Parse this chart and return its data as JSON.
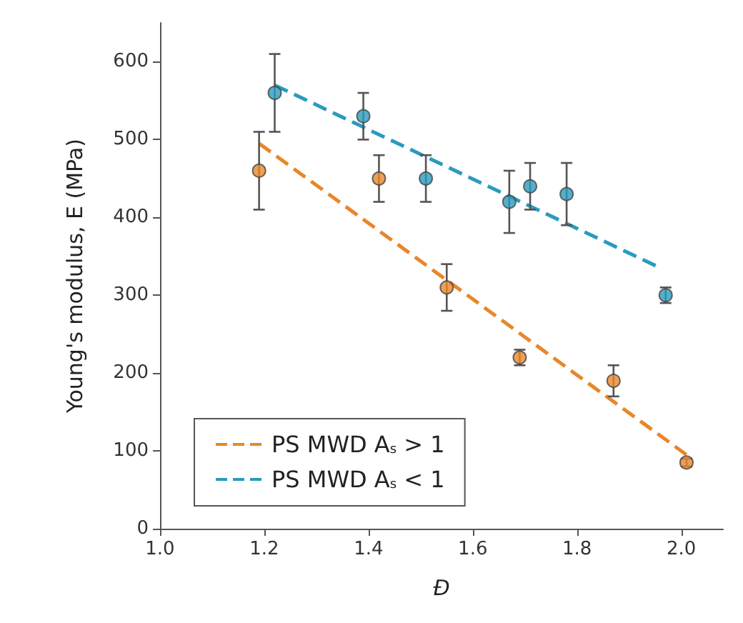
{
  "chart_data": {
    "type": "scatter",
    "xlabel": "Đ",
    "ylabel": "Young's modulus, E (MPa)",
    "xlim": [
      1.0,
      2.08
    ],
    "xticks": [
      {
        "value": 1.0,
        "label": "1.0"
      },
      1.2,
      1.4,
      1.6,
      1.8,
      {
        "value": 2.0,
        "label": "2.0"
      }
    ],
    "ylim": [
      0,
      650
    ],
    "yticks": [
      0,
      100,
      200,
      300,
      400,
      500,
      600
    ],
    "grid": false,
    "legend": "bottom left",
    "marker": "circle",
    "series": [
      {
        "color": "#e8872a",
        "x": [
          1.19,
          1.42,
          1.55,
          1.69,
          1.87,
          2.01
        ],
        "values": [
          460,
          450,
          310,
          220,
          190,
          85
        ],
        "errors": [
          [
            410,
            510
          ],
          [
            420,
            480
          ],
          [
            280,
            340
          ],
          [
            210,
            230
          ],
          [
            170,
            210
          ],
          [
            80,
            90
          ]
        ]
      },
      {
        "color": "#2a9bbd",
        "x": [
          1.22,
          1.39,
          1.51,
          1.67,
          1.71,
          1.78,
          1.97
        ],
        "values": [
          560,
          530,
          450,
          420,
          440,
          430,
          300
        ],
        "errors": [
          [
            510,
            610
          ],
          [
            500,
            560
          ],
          [
            420,
            480
          ],
          [
            380,
            460
          ],
          [
            410,
            470
          ],
          [
            390,
            470
          ],
          [
            290,
            310
          ]
        ]
      },
      {
        "type": "line",
        "name": "PS MWD A$_{s}$ > 1",
        "color": "#e8872a",
        "line_style": "dashed",
        "marker": "none",
        "x": [
          1.19,
          2.01
        ],
        "values": [
          495,
          95
        ]
      },
      {
        "type": "line",
        "name": "PS MWD A$_{s}$ < 1",
        "color": "#2a9bbd",
        "line_style": "dashed",
        "marker": "none",
        "x": [
          1.22,
          1.96
        ],
        "values": [
          570,
          335
        ]
      }
    ]
  }
}
